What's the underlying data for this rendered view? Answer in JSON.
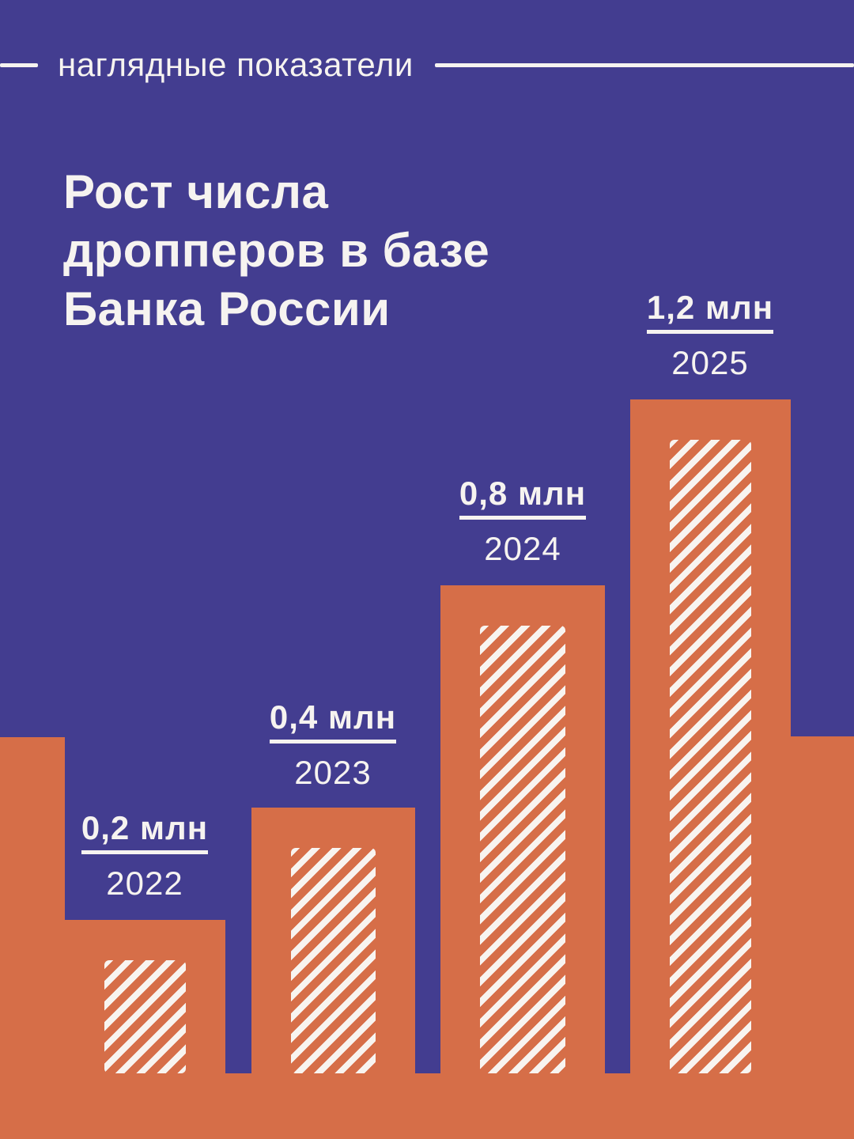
{
  "header": {
    "label": "наглядные показатели"
  },
  "title": {
    "full": "Рост числа дропперов в базе Банка России",
    "lines": [
      "Рост числа",
      "дропперов в базе",
      "Банка России"
    ]
  },
  "chart_data": {
    "type": "bar",
    "title": "Рост числа дропперов в базе Банка России",
    "categories": [
      "2022",
      "2023",
      "2024",
      "2025"
    ],
    "values": [
      0.2,
      0.4,
      0.8,
      1.2
    ],
    "unit": "млн",
    "display_labels": [
      "0,2 млн",
      "0,4 млн",
      "0,8 млн",
      "1,2 млн"
    ],
    "xlabel": "",
    "ylabel": "",
    "grid": false,
    "legend": "none",
    "axes_shown": false,
    "bar_style": "orange columns with white diagonal hatch inset, rising from an orange floor band; decorative unlabeled partial columns at left and right edges"
  },
  "colors": {
    "background": "#433d90",
    "bar_orange": "#d66e48",
    "stripe_white": "#f8f4f0",
    "text": "#f6f3f0"
  }
}
